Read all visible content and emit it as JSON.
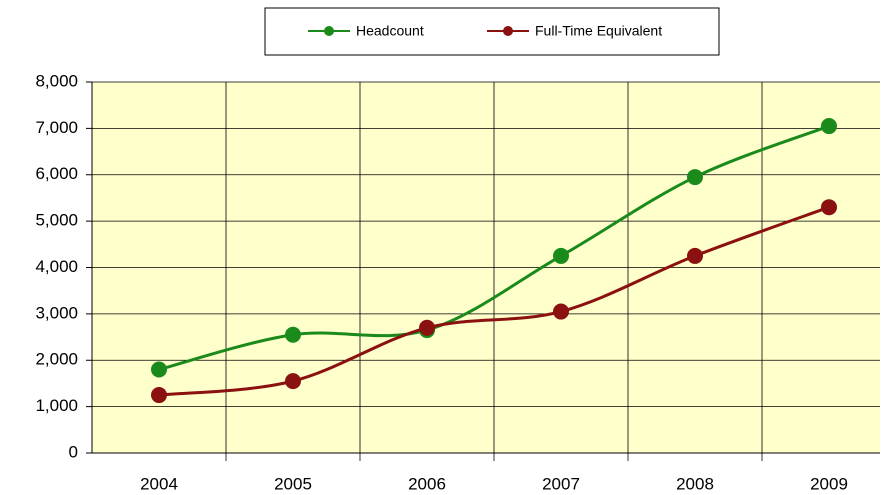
{
  "chart_data": {
    "type": "line",
    "categories": [
      "2004",
      "2005",
      "2006",
      "2007",
      "2008",
      "2009"
    ],
    "series": [
      {
        "name": "Headcount",
        "color": "#1a8a1a",
        "values": [
          1800,
          2550,
          2650,
          4250,
          5950,
          7050
        ]
      },
      {
        "name": "Full-Time Equivalent",
        "color": "#8b1010",
        "values": [
          1250,
          1550,
          2700,
          3050,
          4250,
          5300
        ]
      }
    ],
    "ylim": [
      0,
      8000
    ],
    "yticks": [
      0,
      {
        "value": 1000,
        "label": "1,000"
      },
      {
        "value": 2000,
        "label": "2,000"
      },
      {
        "value": 3000,
        "label": "3,000"
      },
      {
        "value": 4000,
        "label": "4,000"
      },
      {
        "value": 5000,
        "label": "5,000"
      },
      {
        "value": 6000,
        "label": "6,000"
      },
      {
        "value": 7000,
        "label": "7,000"
      },
      {
        "value": 8000,
        "label": "8,000"
      }
    ],
    "grid": true,
    "smooth": true,
    "legend": "top"
  }
}
